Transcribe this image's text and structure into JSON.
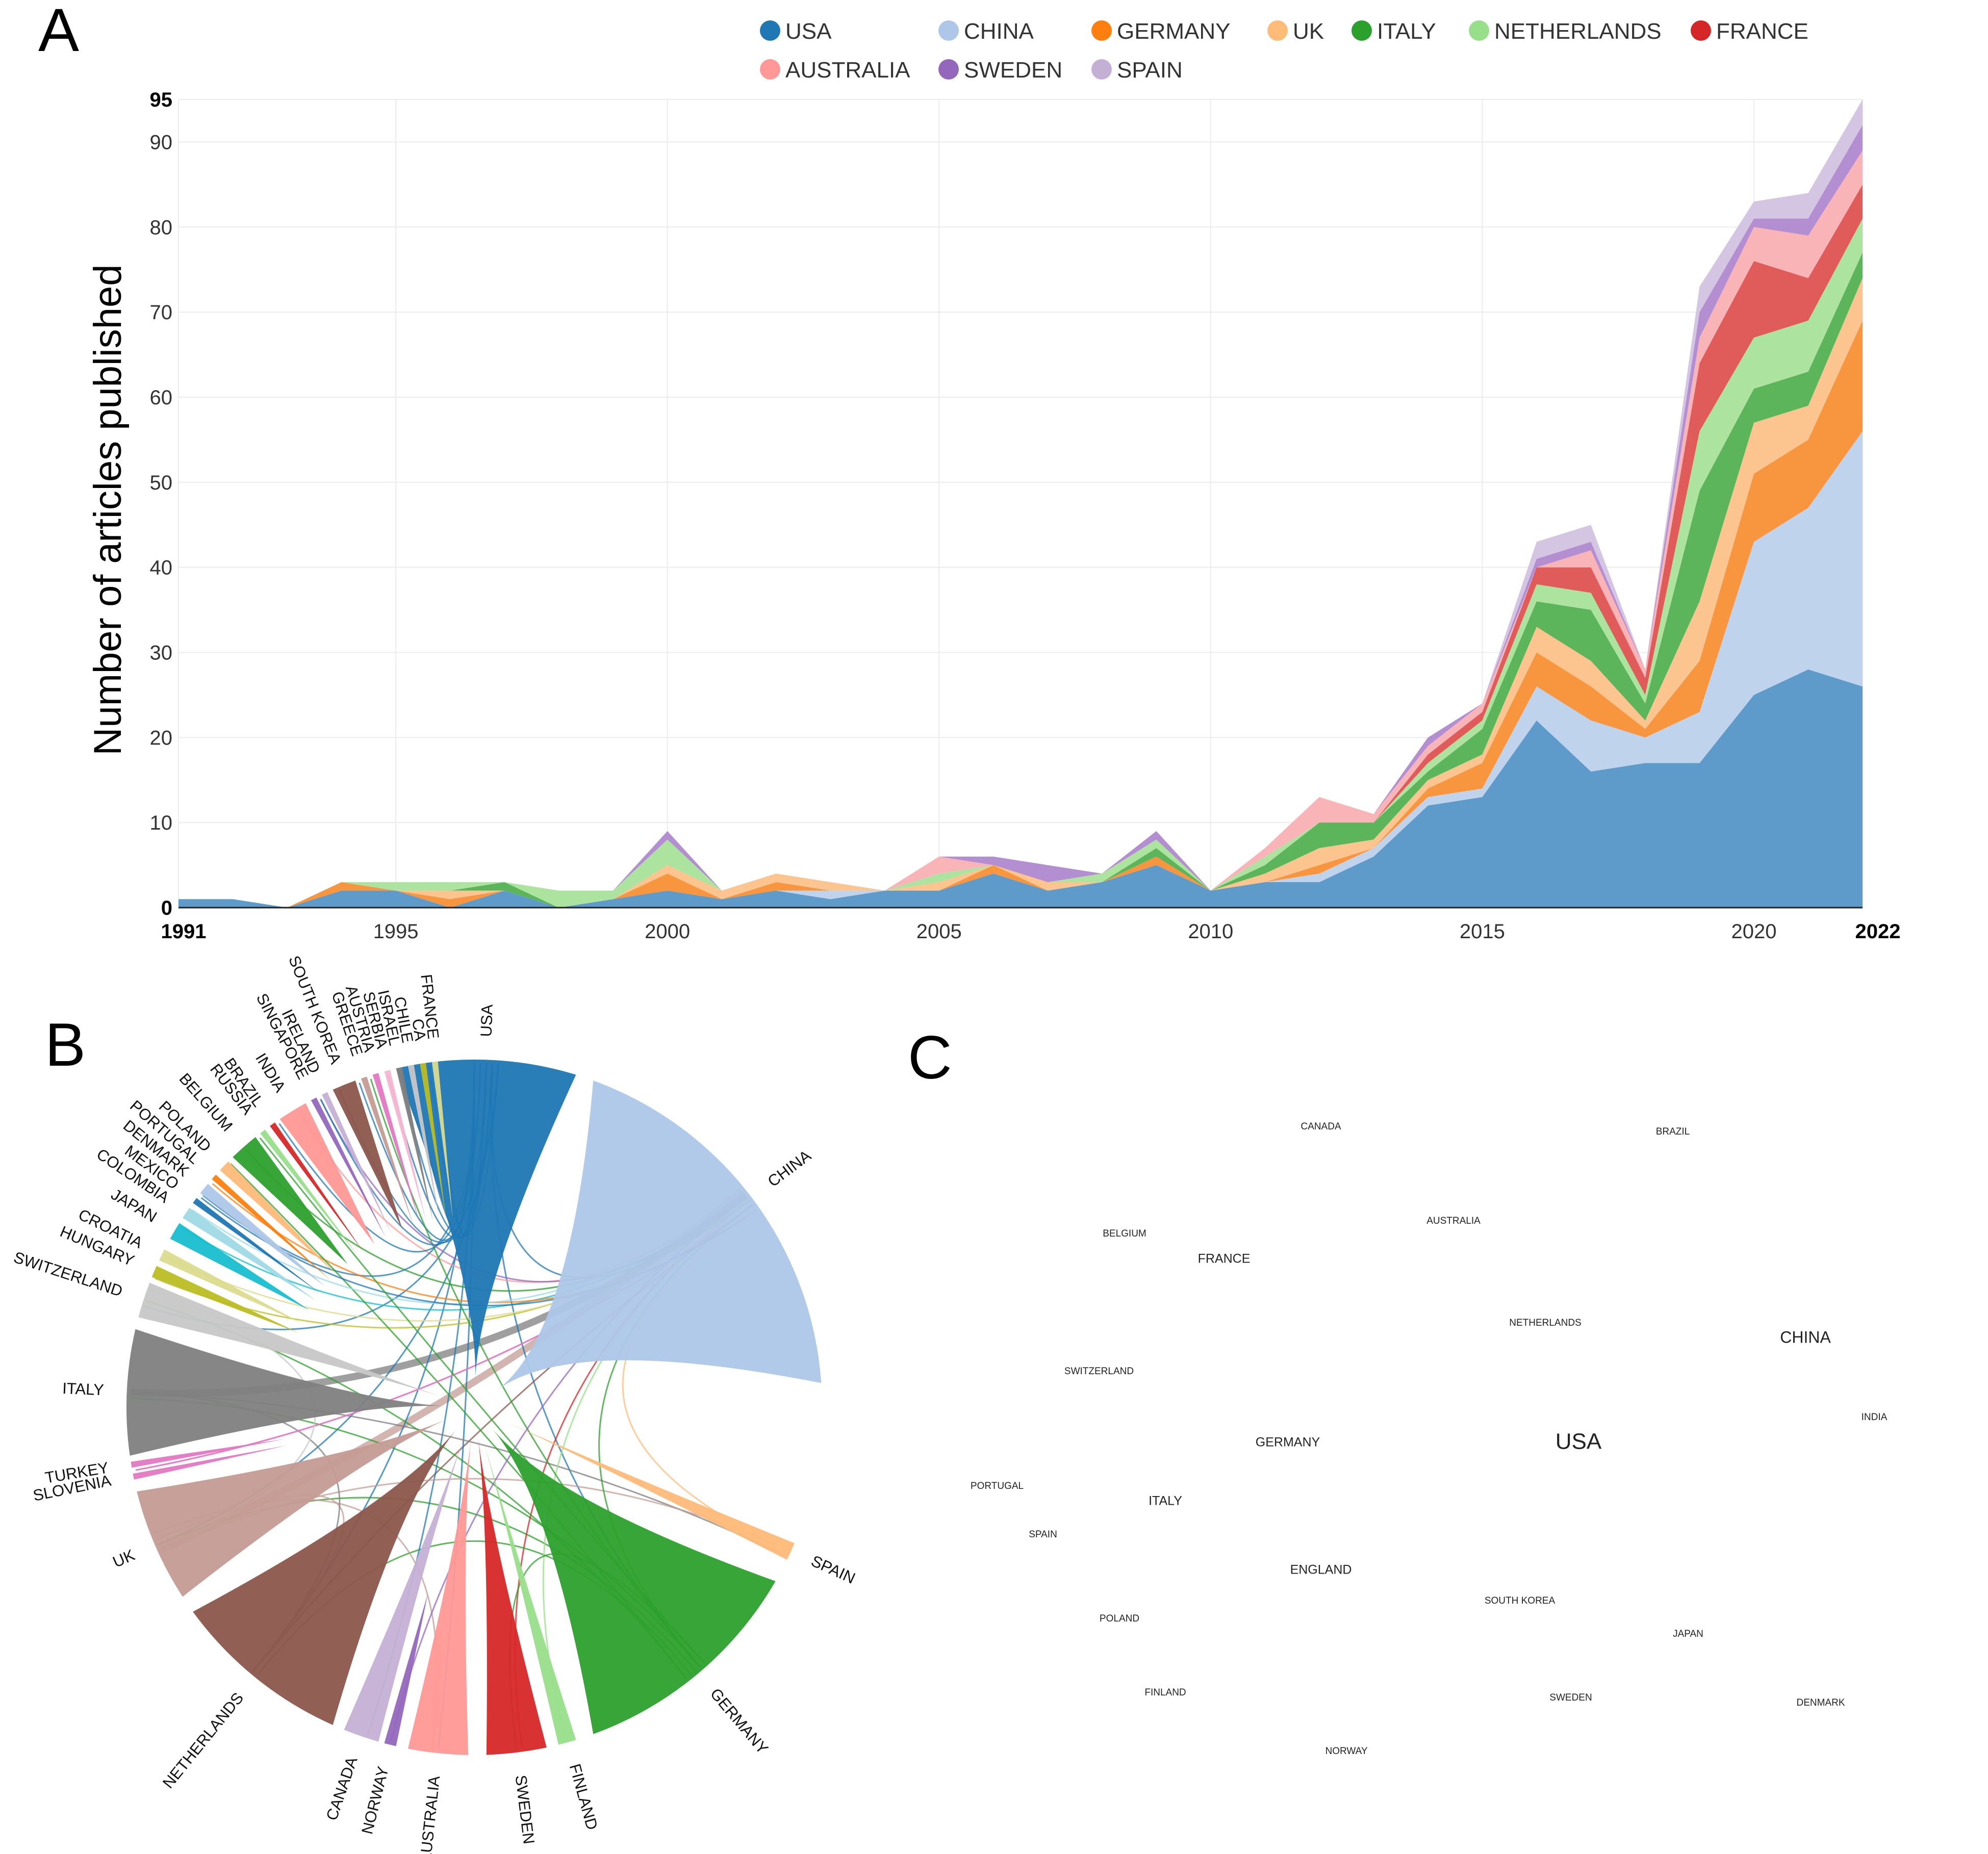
{
  "panels": {
    "a": "A",
    "b": "B",
    "c": "C"
  },
  "chart_data": [
    {
      "type": "area",
      "stacked": true,
      "ylabel": "Number of articles published",
      "xlabel": "",
      "ylim": [
        0,
        95
      ],
      "xlim": [
        1991,
        2022
      ],
      "yticks": [
        0,
        10,
        20,
        30,
        40,
        50,
        60,
        70,
        80,
        90,
        95
      ],
      "xticks": [
        1991,
        1995,
        2000,
        2005,
        2010,
        2015,
        2020,
        2022
      ],
      "grid": true,
      "legend_position": "top",
      "x": [
        1991,
        1992,
        1993,
        1994,
        1995,
        1996,
        1997,
        1998,
        1999,
        2000,
        2001,
        2002,
        2003,
        2004,
        2005,
        2006,
        2007,
        2008,
        2009,
        2010,
        2011,
        2012,
        2013,
        2014,
        2015,
        2016,
        2017,
        2018,
        2019,
        2020,
        2021,
        2022
      ],
      "series": [
        {
          "name": "USA",
          "color": "#5e9bca",
          "values": [
            1,
            1,
            0,
            2,
            2,
            0,
            2,
            0,
            1,
            2,
            1,
            2,
            1,
            2,
            2,
            4,
            2,
            3,
            5,
            2,
            3,
            3,
            6,
            12,
            13,
            22,
            16,
            17,
            17,
            25,
            28,
            26
          ]
        },
        {
          "name": "CHINA",
          "color": "#bfd3ec",
          "values": [
            0,
            0,
            0,
            0,
            0,
            0,
            0,
            0,
            0,
            0,
            0,
            0,
            1,
            0,
            0,
            0,
            0,
            0,
            0,
            0,
            0,
            1,
            1,
            1,
            1,
            4,
            6,
            3,
            6,
            18,
            19,
            30
          ]
        },
        {
          "name": "GERMANY",
          "color": "#f7963f",
          "values": [
            0,
            0,
            0,
            1,
            0,
            1,
            0,
            0,
            0,
            2,
            0,
            1,
            0,
            0,
            0,
            1,
            0,
            0,
            1,
            0,
            0,
            1,
            0,
            1,
            3,
            4,
            4,
            1,
            6,
            8,
            8,
            13
          ]
        },
        {
          "name": "UK",
          "color": "#fcc48f",
          "values": [
            0,
            0,
            0,
            0,
            0,
            1,
            0,
            0,
            0,
            1,
            1,
            1,
            1,
            0,
            1,
            0,
            1,
            0,
            0,
            0,
            1,
            2,
            1,
            1,
            1,
            3,
            3,
            1,
            7,
            6,
            4,
            5
          ]
        },
        {
          "name": "ITALY",
          "color": "#5cb55a",
          "values": [
            0,
            0,
            0,
            0,
            0,
            0,
            1,
            0,
            0,
            0,
            0,
            0,
            0,
            0,
            0,
            0,
            0,
            0,
            1,
            0,
            1,
            3,
            2,
            1,
            3,
            3,
            6,
            2,
            13,
            4,
            4,
            3
          ]
        },
        {
          "name": "NETHERLANDS",
          "color": "#ace39f",
          "values": [
            0,
            0,
            0,
            0,
            1,
            1,
            0,
            2,
            1,
            3,
            0,
            0,
            0,
            0,
            1,
            0,
            0,
            1,
            1,
            0,
            1,
            0,
            0,
            1,
            1,
            2,
            2,
            1,
            7,
            6,
            6,
            4
          ]
        },
        {
          "name": "FRANCE",
          "color": "#df5c5b",
          "values": [
            0,
            0,
            0,
            0,
            0,
            0,
            0,
            0,
            0,
            0,
            0,
            0,
            0,
            0,
            0,
            0,
            0,
            0,
            0,
            0,
            0,
            0,
            0,
            1,
            1,
            2,
            3,
            2,
            8,
            9,
            5,
            4
          ]
        },
        {
          "name": "AUSTRALIA",
          "color": "#f8b4b7",
          "values": [
            0,
            0,
            0,
            0,
            0,
            0,
            0,
            0,
            0,
            0,
            0,
            0,
            0,
            0,
            2,
            0,
            0,
            0,
            0,
            0,
            1,
            3,
            1,
            1,
            1,
            0,
            2,
            1,
            3,
            4,
            5,
            4
          ]
        },
        {
          "name": "SWEDEN",
          "color": "#b38ed1",
          "values": [
            0,
            0,
            0,
            0,
            0,
            0,
            0,
            0,
            0,
            1,
            0,
            0,
            0,
            0,
            0,
            1,
            2,
            0,
            1,
            0,
            0,
            0,
            0,
            1,
            0,
            1,
            1,
            0,
            3,
            1,
            2,
            3
          ]
        },
        {
          "name": "SPAIN",
          "color": "#d4c5e2",
          "values": [
            0,
            0,
            0,
            0,
            0,
            0,
            0,
            0,
            0,
            0,
            0,
            0,
            0,
            0,
            0,
            0,
            0,
            0,
            0,
            0,
            0,
            0,
            0,
            0,
            0,
            2,
            2,
            0,
            3,
            2,
            3,
            3
          ]
        }
      ],
      "legend_colors": [
        "#1f77b4",
        "#aec7e8",
        "#ff7f0e",
        "#ffbb78",
        "#2ca02c",
        "#98df8a",
        "#d62728",
        "#ff9896",
        "#9467bd",
        "#c5b0d5"
      ]
    },
    {
      "type": "chord",
      "groups": [
        {
          "name": "USA",
          "color": "#1f77b4"
        },
        {
          "name": "CHINA",
          "color": "#aec7e8"
        },
        {
          "name": "SPAIN",
          "color": "#ffbb78"
        },
        {
          "name": "GERMANY",
          "color": "#2ca02c"
        },
        {
          "name": "FINLAND",
          "color": "#98df8a"
        },
        {
          "name": "SWEDEN",
          "color": "#d62728"
        },
        {
          "name": "AUSTRALIA",
          "color": "#ff9896"
        },
        {
          "name": "NORWAY",
          "color": "#9467bd"
        },
        {
          "name": "CANADA",
          "color": "#c5b0d5"
        },
        {
          "name": "NETHERLANDS",
          "color": "#8c564b"
        },
        {
          "name": "UK",
          "color": "#c49c94"
        },
        {
          "name": "SLOVENIA",
          "color": "#e377c2"
        },
        {
          "name": "TURKEY",
          "color": "#e377c2"
        },
        {
          "name": "ITALY",
          "color": "#f7b6d2"
        },
        {
          "name": "SWITZERLAND",
          "color": "#c7c7c7"
        },
        {
          "name": "HUNGARY",
          "color": "#bcbd22"
        },
        {
          "name": "CROATIA",
          "color": "#dbdb8d"
        },
        {
          "name": "JAPAN",
          "color": "#17becf"
        },
        {
          "name": "COLOMBIA",
          "color": "#9edae5"
        },
        {
          "name": "MEXICO",
          "color": "#1f77b4"
        },
        {
          "name": "DENMARK",
          "color": "#aec7e8"
        },
        {
          "name": "PORTUGAL",
          "color": "#ff7f0e"
        },
        {
          "name": "POLAND",
          "color": "#ffbb78"
        },
        {
          "name": "BELGIUM",
          "color": "#2ca02c"
        },
        {
          "name": "RUSSIA",
          "color": "#98df8a"
        },
        {
          "name": "BRAZIL",
          "color": "#d62728"
        },
        {
          "name": "INDIA",
          "color": "#ff9896"
        },
        {
          "name": "SINGAPORE",
          "color": "#9467bd"
        },
        {
          "name": "IRELAND",
          "color": "#c5b0d5"
        },
        {
          "name": "SOUTH KOREA",
          "color": "#8c564b"
        },
        {
          "name": "GREECE",
          "color": "#c49c94"
        },
        {
          "name": "AUSTRIA",
          "color": "#e377c2"
        },
        {
          "name": "SERBIA",
          "color": "#f7b6d2"
        },
        {
          "name": "ISRAEL",
          "color": "#7f7f7f"
        },
        {
          "name": "CHILE",
          "color": "#c7c7c7"
        },
        {
          "name": "CA",
          "color": "#bcbd22"
        },
        {
          "name": "FRANCE",
          "color": "#dbdb8d"
        }
      ],
      "italy_sector_color": "#7f7f7f"
    },
    {
      "type": "heatmap",
      "points": [
        {
          "name": "USA",
          "weight": 1.0
        },
        {
          "name": "CHINA",
          "weight": 0.82
        },
        {
          "name": "GERMANY",
          "weight": 0.62
        },
        {
          "name": "FRANCE",
          "weight": 0.5
        },
        {
          "name": "ITALY",
          "weight": 0.52
        },
        {
          "name": "ENGLAND",
          "weight": 0.52
        },
        {
          "name": "NETHERLANDS",
          "weight": 0.45
        },
        {
          "name": "CANADA",
          "weight": 0.35
        },
        {
          "name": "BRAZIL",
          "weight": 0.28
        },
        {
          "name": "AUSTRALIA",
          "weight": 0.38
        },
        {
          "name": "BELGIUM",
          "weight": 0.33
        },
        {
          "name": "SWITZERLAND",
          "weight": 0.33
        },
        {
          "name": "INDIA",
          "weight": 0.28
        },
        {
          "name": "PORTUGAL",
          "weight": 0.33
        },
        {
          "name": "SPAIN",
          "weight": 0.42
        },
        {
          "name": "POLAND",
          "weight": 0.33
        },
        {
          "name": "SOUTH KOREA",
          "weight": 0.33
        },
        {
          "name": "JAPAN",
          "weight": 0.38
        },
        {
          "name": "FINLAND",
          "weight": 0.33
        },
        {
          "name": "SWEDEN",
          "weight": 0.42
        },
        {
          "name": "DENMARK",
          "weight": 0.28
        },
        {
          "name": "NORWAY",
          "weight": 0.28
        }
      ]
    }
  ]
}
